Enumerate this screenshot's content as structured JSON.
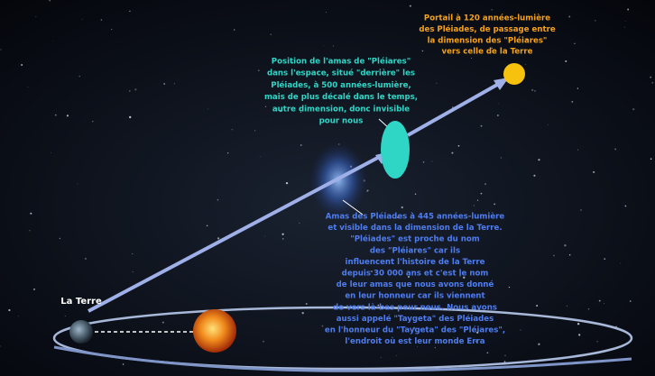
{
  "portal_note": {
    "lines": [
      "Portail à 120 années-lumière",
      "des Pléiades, de passage entre",
      "la dimension des \"Pléiares\"",
      "vers celle de la Terre"
    ]
  },
  "pleiares_note": {
    "lines": [
      "Position de l'amas de \"Pléiares\"",
      "dans l'espace, situé \"derrière\" les",
      "Pléiades, à 500 années-lumière,",
      "mais de plus décalé dans le temps,",
      "autre dimension, donc invisible",
      "pour nous"
    ]
  },
  "pleiades_note": {
    "lines": [
      "Amas des Pléiades à 445 années-lumière",
      "et visible dans la dimension de la Terre.",
      "\"Pléiades\" est proche du nom",
      "des \"Pléiares\" car ils",
      "influencent l'histoire de la Terre",
      "depuis 30 000 ans et c'est le nom",
      "de leur amas que nous avons donné",
      "en leur honneur car ils viennent",
      "de vers là-bas pour nous. Nous avons",
      "aussi appelé \"Taygeta\" des Pléiades",
      "en l'honneur du \"Taygeta\" des \"Pléiares\",",
      "l'endroit où est leur monde Erra"
    ]
  },
  "earth_label": "La Terre"
}
